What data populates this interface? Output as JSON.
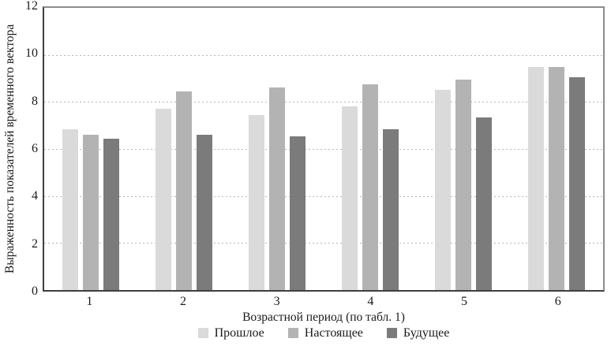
{
  "figure": {
    "y_axis_title": "Выраженность показателей временного вектора",
    "x_axis_title": "Возрастной период (по табл. 1)"
  },
  "legend": [
    {
      "key": "past",
      "label": "Прошлое",
      "color": "#dadada"
    },
    {
      "key": "present",
      "label": "Настоящее",
      "color": "#b3b3b3"
    },
    {
      "key": "future",
      "label": "Будущее",
      "color": "#7b7b7b"
    }
  ],
  "chart_data": {
    "type": "bar",
    "title": "",
    "xlabel": "Возрастной период (по табл. 1)",
    "ylabel": "Выраженность показателей временного вектора",
    "categories": [
      "1",
      "2",
      "3",
      "4",
      "5",
      "6"
    ],
    "series": [
      {
        "key": "past",
        "name": "Прошлое",
        "color": "#dadada",
        "values": [
          6.85,
          7.7,
          7.45,
          7.8,
          8.5,
          9.5
        ]
      },
      {
        "key": "present",
        "name": "Настоящее",
        "color": "#b3b3b3",
        "values": [
          6.6,
          8.45,
          8.6,
          8.75,
          8.95,
          9.5
        ]
      },
      {
        "key": "future",
        "name": "Будущее",
        "color": "#7b7b7b",
        "values": [
          6.45,
          6.6,
          6.55,
          6.85,
          7.35,
          9.05
        ]
      }
    ],
    "ylim": [
      0,
      12
    ],
    "yticks": [
      0,
      2,
      4,
      6,
      8,
      10,
      12
    ],
    "grid": "horizontal-dotted",
    "legend_position": "bottom"
  }
}
